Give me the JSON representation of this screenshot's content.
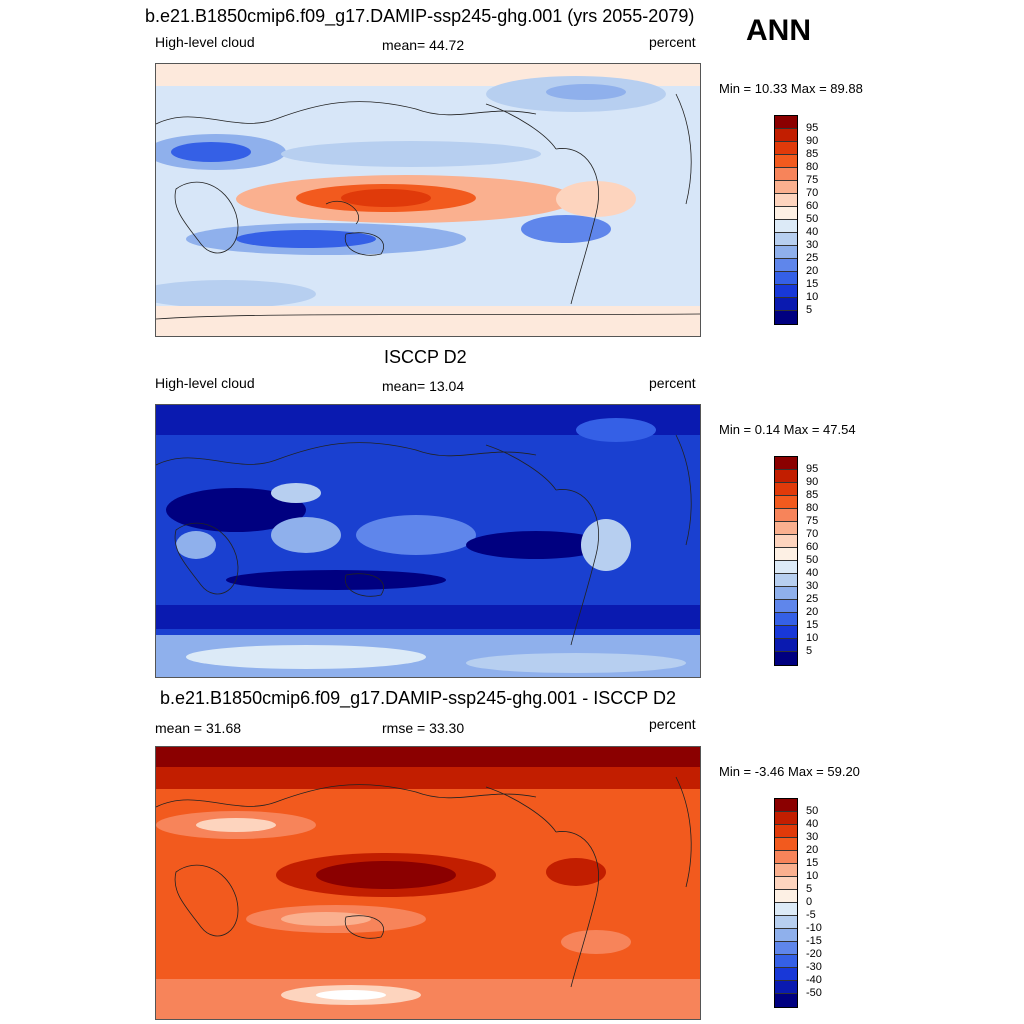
{
  "season": "ANN",
  "panels": [
    {
      "title": "b.e21.B1850cmip6.f09_g17.DAMIP-ssp245-ghg.001 (yrs 2055-2079)",
      "left_label": "High-level cloud",
      "center_label": "mean=  44.72",
      "right_label": "percent",
      "minmax": "Min =  10.33 Max =  89.88",
      "colorbar": {
        "labels": [
          "95",
          "90",
          "85",
          "80",
          "75",
          "70",
          "60",
          "50",
          "40",
          "30",
          "25",
          "20",
          "15",
          "10",
          "5"
        ],
        "colors": [
          "#8b0000",
          "#c21e00",
          "#e03a0a",
          "#f25a1e",
          "#f7845a",
          "#fab08f",
          "#fdd4be",
          "#fdf0e4",
          "#dceaf7",
          "#b7cff0",
          "#8fb0ec",
          "#5f86eb",
          "#3560e6",
          "#1838d8",
          "#0a1ab0",
          "#000080"
        ]
      },
      "map_field": "model-high-cloud"
    },
    {
      "title": "ISCCP D2",
      "left_label": "High-level cloud",
      "center_label": "mean=  13.04",
      "right_label": "percent",
      "minmax": "Min =   0.14 Max =  47.54",
      "colorbar": {
        "labels": [
          "95",
          "90",
          "85",
          "80",
          "75",
          "70",
          "60",
          "50",
          "40",
          "30",
          "25",
          "20",
          "15",
          "10",
          "5"
        ],
        "colors": [
          "#8b0000",
          "#c21e00",
          "#e03a0a",
          "#f25a1e",
          "#f7845a",
          "#fab08f",
          "#fdd4be",
          "#fdf0e4",
          "#dceaf7",
          "#b7cff0",
          "#8fb0ec",
          "#5f86eb",
          "#3560e6",
          "#1838d8",
          "#0a1ab0",
          "#000080"
        ]
      },
      "map_field": "obs-high-cloud"
    },
    {
      "title": "b.e21.B1850cmip6.f09_g17.DAMIP-ssp245-ghg.001 - ISCCP D2",
      "left_label": "mean =  31.68",
      "center_label": "rmse =  33.30",
      "right_label": "percent",
      "minmax": "Min =  -3.46 Max =  59.20",
      "colorbar": {
        "labels": [
          "50",
          "40",
          "30",
          "20",
          "15",
          "10",
          "5",
          "0",
          "-5",
          "-10",
          "-15",
          "-20",
          "-30",
          "-40",
          "-50"
        ],
        "colors": [
          "#8b0000",
          "#c21e00",
          "#e03a0a",
          "#f25a1e",
          "#f7845a",
          "#fab08f",
          "#fdd4be",
          "#fdf0e4",
          "#dceaf7",
          "#b7cff0",
          "#8fb0ec",
          "#5f86eb",
          "#3560e6",
          "#1838d8",
          "#0a1ab0",
          "#000080"
        ]
      },
      "map_field": "difference"
    }
  ]
}
